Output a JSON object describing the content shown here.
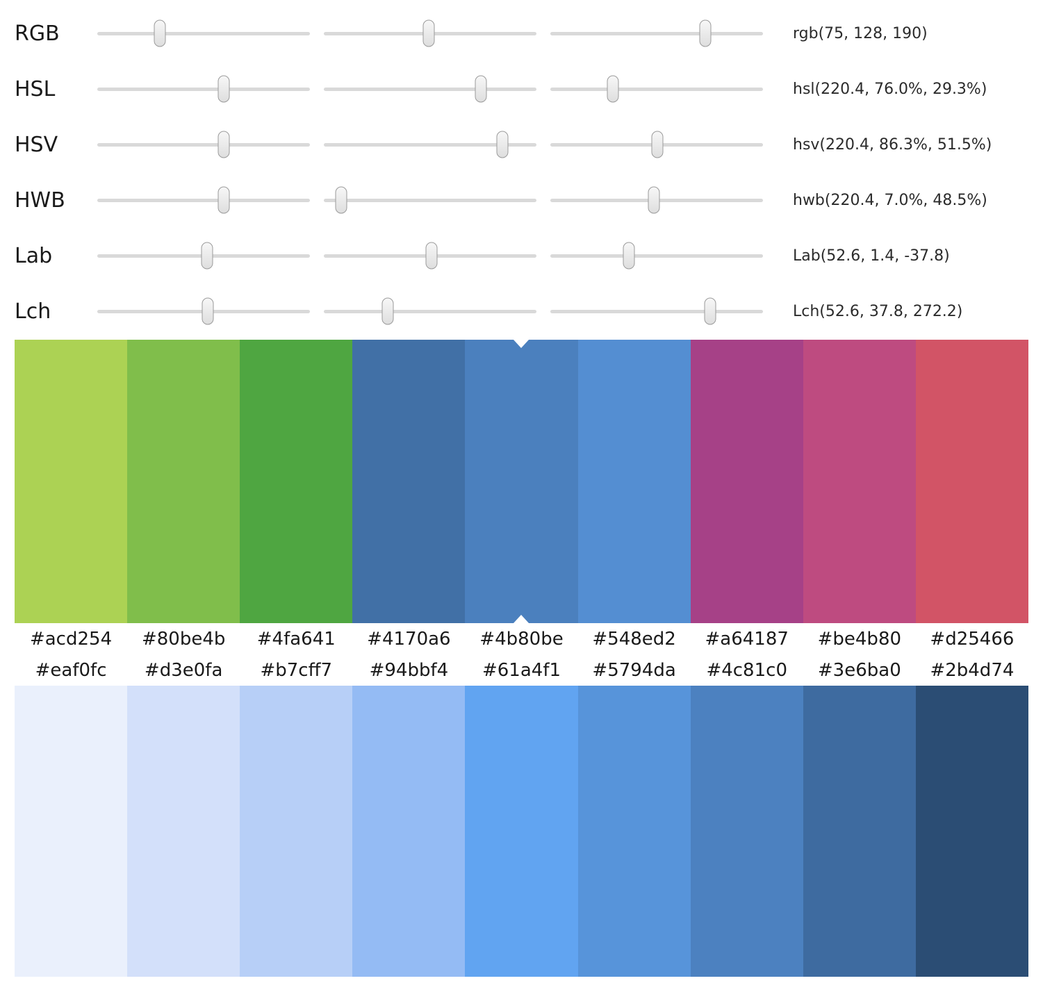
{
  "slider_rows": [
    {
      "label": "RGB",
      "value": "rgb(75, 128, 190)",
      "thumbs": [
        29.3,
        49.2,
        73.0
      ]
    },
    {
      "label": "HSL",
      "value": "hsl(220.4, 76.0%, 29.3%)",
      "thumbs": [
        59.6,
        73.8,
        29.3
      ]
    },
    {
      "label": "HSV",
      "value": "hsv(220.4, 86.3%, 51.5%)",
      "thumbs": [
        59.6,
        83.9,
        50.3
      ]
    },
    {
      "label": "HWB",
      "value": "hwb(220.4, 7.0%, 48.5%)",
      "thumbs": [
        59.6,
        8.2,
        48.7
      ]
    },
    {
      "label": "Lab",
      "value": "Lab(52.6, 1.4, -37.8)",
      "thumbs": [
        51.5,
        50.8,
        37.0
      ]
    },
    {
      "label": "Lch",
      "value": "Lch(52.6, 37.8, 272.2)",
      "thumbs": [
        52.1,
        30.2,
        75.3
      ]
    }
  ],
  "top_palette": {
    "selected_index": 4,
    "swatches": [
      "#acd254",
      "#80be4b",
      "#4fa641",
      "#4170a6",
      "#4b80be",
      "#548ed2",
      "#a64187",
      "#be4b80",
      "#d25466"
    ]
  },
  "bottom_palette": {
    "swatches": [
      "#eaf0fc",
      "#d3e0fa",
      "#b7cff7",
      "#94bbf4",
      "#61a4f1",
      "#5794da",
      "#4c81c0",
      "#3e6ba0",
      "#2b4d74"
    ]
  }
}
